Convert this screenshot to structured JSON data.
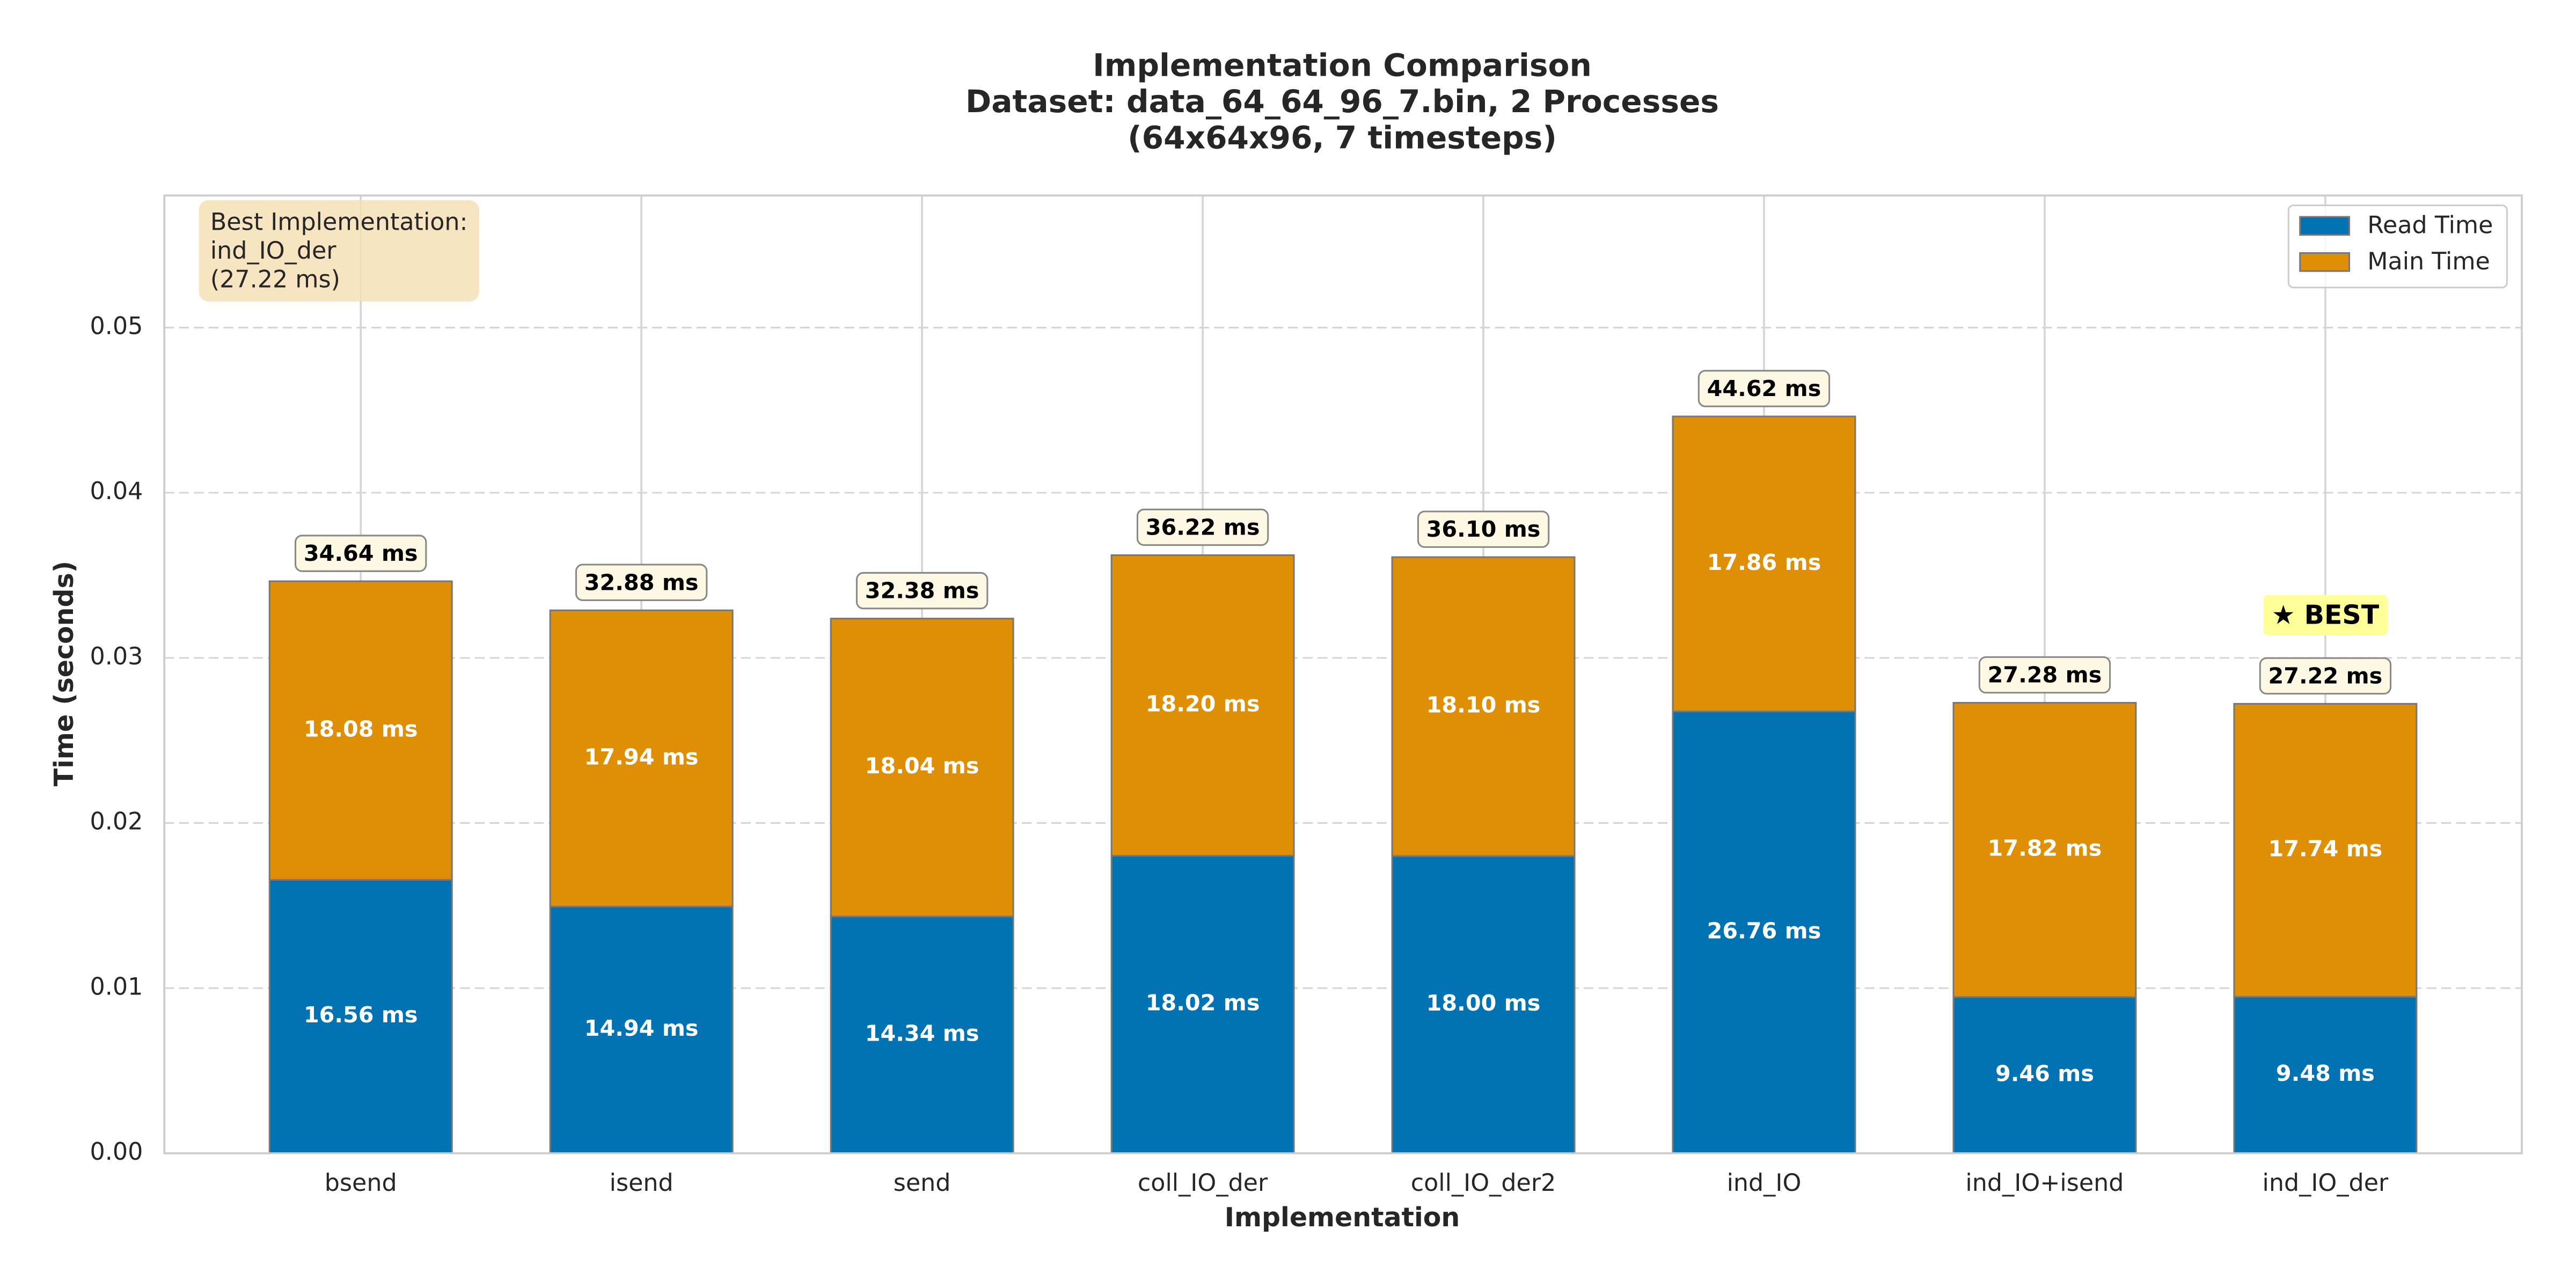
{
  "chart_data": {
    "type": "stacked_bar",
    "title": [
      "Implementation Comparison",
      "Dataset: data_64_64_96_7.bin, 2 Processes",
      "(64x64x96, 7 timesteps)"
    ],
    "x_label": "Implementation",
    "y_label": "Time (seconds)",
    "categories": [
      "bsend",
      "isend",
      "send",
      "coll_IO_der",
      "coll_IO_der2",
      "ind_IO",
      "ind_IO+isend",
      "ind_IO_der"
    ],
    "series": [
      {
        "name": "Read Time",
        "color": "#0173b2",
        "values": [
          0.01656,
          0.01494,
          0.01434,
          0.01802,
          0.018,
          0.02676,
          0.00946,
          0.00948
        ],
        "value_labels": [
          "16.56 ms",
          "14.94 ms",
          "14.34 ms",
          "18.02 ms",
          "18.00 ms",
          "26.76 ms",
          "9.46 ms",
          "9.48 ms"
        ]
      },
      {
        "name": "Main Time",
        "color": "#de8f05",
        "values": [
          0.01808,
          0.01794,
          0.01804,
          0.0182,
          0.0181,
          0.01786,
          0.01782,
          0.01774
        ],
        "value_labels": [
          "18.08 ms",
          "17.94 ms",
          "18.04 ms",
          "18.20 ms",
          "18.10 ms",
          "17.86 ms",
          "17.82 ms",
          "17.74 ms"
        ]
      }
    ],
    "totals": [
      0.03464,
      0.03288,
      0.03238,
      0.03622,
      0.0361,
      0.04462,
      0.02728,
      0.02722
    ],
    "total_labels": [
      "34.64 ms",
      "32.88 ms",
      "32.38 ms",
      "36.22 ms",
      "36.10 ms",
      "44.62 ms",
      "27.28 ms",
      "27.22 ms"
    ],
    "best_badge": {
      "index": 7,
      "label": "★ BEST"
    },
    "annotation": [
      "Best Implementation:",
      "ind_IO_der",
      "(27.22 ms)"
    ],
    "ylim": [
      0,
      0.058
    ],
    "yticks": [
      {
        "value": 0,
        "label": "0.00"
      },
      {
        "value": 0.01,
        "label": "0.01"
      },
      {
        "value": 0.02,
        "label": "0.02"
      },
      {
        "value": 0.03,
        "label": "0.03"
      },
      {
        "value": 0.04,
        "label": "0.04"
      },
      {
        "value": 0.05,
        "label": "0.05"
      }
    ],
    "grid": true,
    "legend": "upper right"
  }
}
